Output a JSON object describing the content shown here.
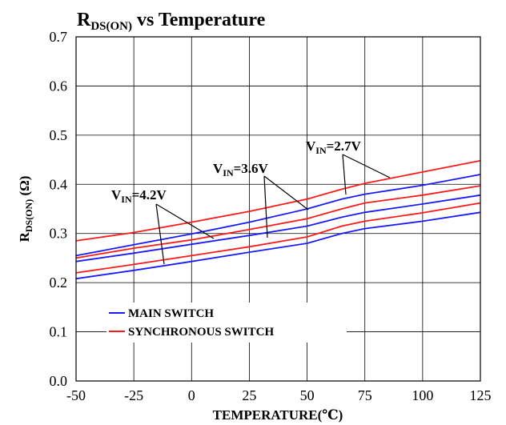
{
  "chart_data": {
    "type": "line",
    "title": {
      "main": "R",
      "sub": "DS(ON)",
      "rest": " vs Temperature"
    },
    "xlabel": "TEMPERATURE(℃)",
    "ylabel": {
      "main": "R",
      "sub": "DS(ON)",
      "rest": " (Ω)"
    },
    "xlim": [
      -50,
      125
    ],
    "ylim": [
      0.0,
      0.7
    ],
    "xticks": [
      "-50",
      "-25",
      "0",
      "25",
      "50",
      "75",
      "100",
      "125"
    ],
    "yticks": [
      "0.0",
      "0.1",
      "0.2",
      "0.3",
      "0.4",
      "0.5",
      "0.6",
      "0.7"
    ],
    "grid": true,
    "legend": {
      "position": "bottom-left",
      "entries": [
        {
          "label": "MAIN SWITCH",
          "color": "#1a1aff"
        },
        {
          "label": "SYNCHRONOUS SWITCH",
          "color": "#ff1a1a"
        }
      ]
    },
    "annotations": [
      {
        "main": "V",
        "sub": "IN",
        "rest": "=2.7V"
      },
      {
        "main": "V",
        "sub": "IN",
        "rest": "=3.6V"
      },
      {
        "main": "V",
        "sub": "IN",
        "rest": "=4.2V"
      }
    ],
    "x": [
      -50,
      -25,
      0,
      25,
      50,
      65,
      75,
      100,
      125
    ],
    "series": [
      {
        "vin": "2.7V",
        "switch": "SYNCHRONOUS SWITCH",
        "color": "#ff1a1a",
        "values": [
          0.285,
          0.302,
          0.323,
          0.345,
          0.37,
          0.39,
          0.402,
          0.425,
          0.448
        ]
      },
      {
        "vin": "2.7V",
        "switch": "MAIN SWITCH",
        "color": "#1a1aff",
        "values": [
          0.255,
          0.277,
          0.299,
          0.323,
          0.35,
          0.37,
          0.38,
          0.398,
          0.42
        ]
      },
      {
        "vin": "3.6V",
        "switch": "SYNCHRONOUS SWITCH",
        "color": "#ff1a1a",
        "values": [
          0.25,
          0.27,
          0.287,
          0.308,
          0.33,
          0.35,
          0.362,
          0.378,
          0.397
        ]
      },
      {
        "vin": "3.6V",
        "switch": "MAIN SWITCH",
        "color": "#1a1aff",
        "values": [
          0.243,
          0.26,
          0.278,
          0.296,
          0.315,
          0.333,
          0.343,
          0.36,
          0.378
        ]
      },
      {
        "vin": "4.2V",
        "switch": "SYNCHRONOUS SWITCH",
        "color": "#ff1a1a",
        "values": [
          0.22,
          0.237,
          0.255,
          0.273,
          0.293,
          0.315,
          0.325,
          0.342,
          0.362
        ]
      },
      {
        "vin": "4.2V",
        "switch": "MAIN SWITCH",
        "color": "#1a1aff",
        "values": [
          0.208,
          0.225,
          0.243,
          0.262,
          0.28,
          0.3,
          0.31,
          0.325,
          0.343
        ]
      }
    ]
  }
}
